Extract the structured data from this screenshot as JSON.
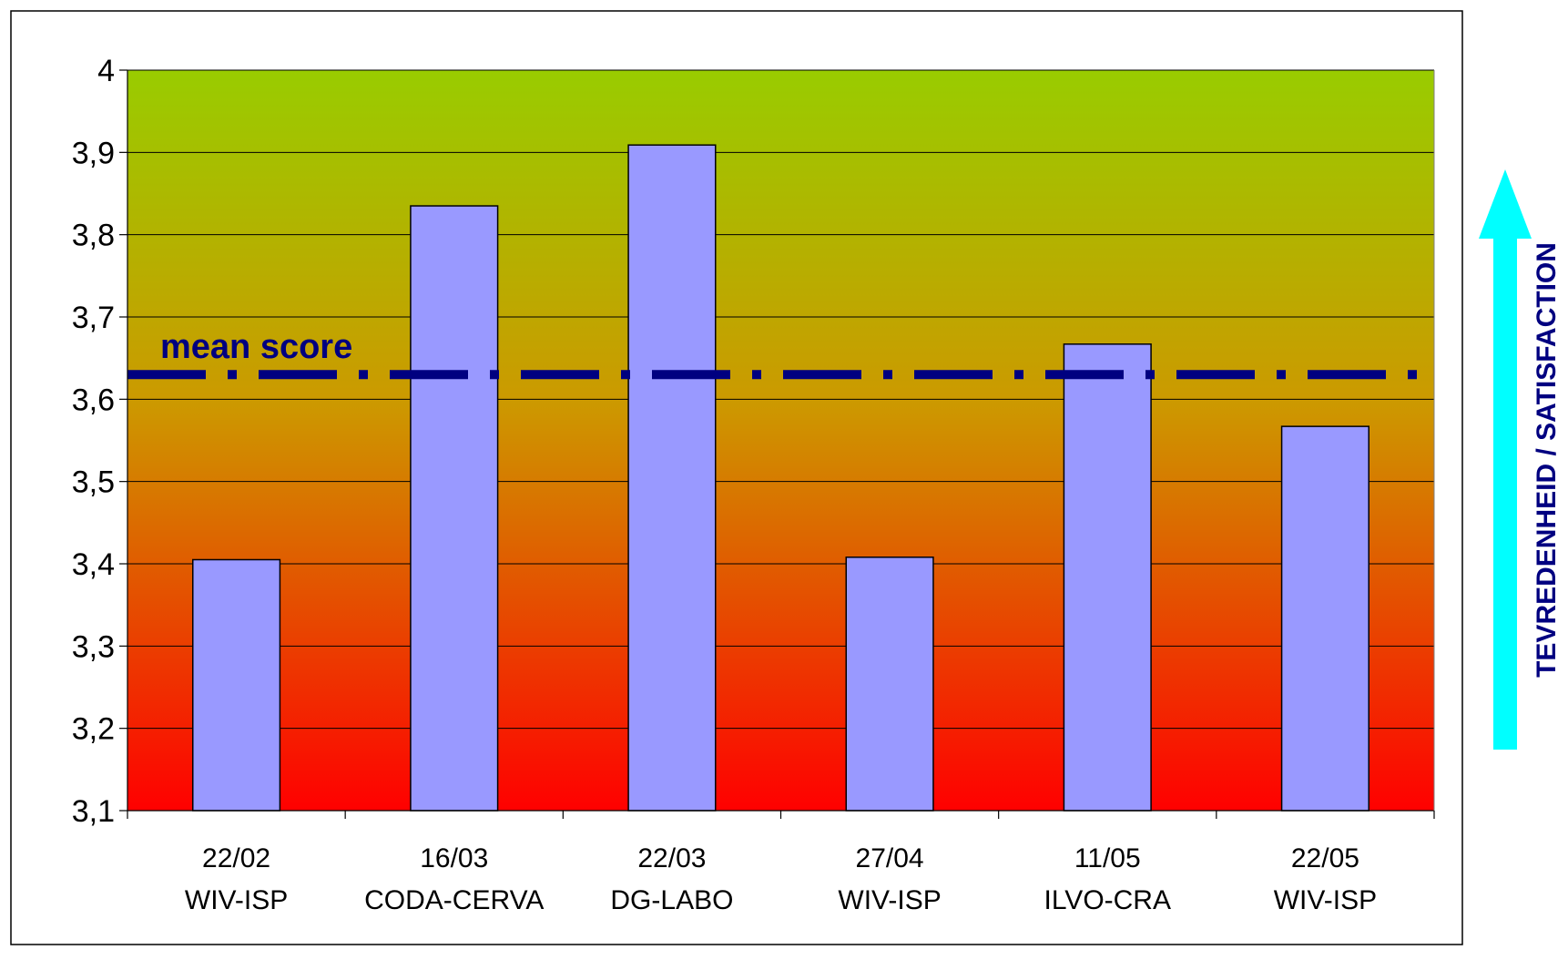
{
  "chart_data": {
    "type": "bar",
    "categories": [
      {
        "date": "22/02",
        "lab": "WIV-ISP"
      },
      {
        "date": "16/03",
        "lab": "CODA-CERVA"
      },
      {
        "date": "22/03",
        "lab": "DG-LABO"
      },
      {
        "date": "27/04",
        "lab": "WIV-ISP"
      },
      {
        "date": "11/05",
        "lab": "ILVO-CRA"
      },
      {
        "date": "22/05",
        "lab": "WIV-ISP"
      }
    ],
    "values": [
      3.405,
      3.835,
      3.909,
      3.408,
      3.667,
      3.567
    ],
    "ylim": [
      3.1,
      4.0
    ],
    "yticks": [
      "3,1",
      "3,2",
      "3,3",
      "3,4",
      "3,5",
      "3,6",
      "3,7",
      "3,8",
      "3,9",
      "4"
    ],
    "grid": true,
    "mean_line": {
      "label": "mean score",
      "value": 3.63
    },
    "side_label": "TEVREDENHEID / SATISFACTION",
    "colors": {
      "bar_fill": "#9999ff",
      "bar_stroke": "#000000",
      "mean_line": "#000080",
      "arrow": "#00ffff",
      "gradient_top": "#99cc00",
      "gradient_mid": "#cc9900",
      "gradient_bottom": "#ff0000"
    }
  }
}
